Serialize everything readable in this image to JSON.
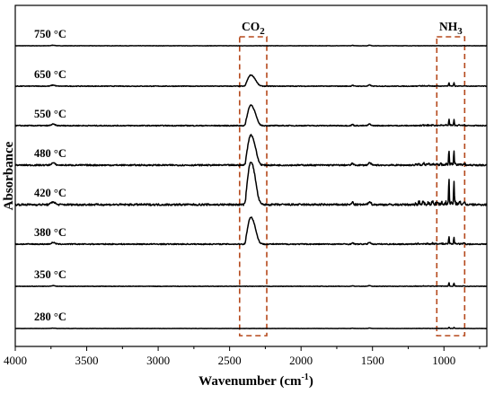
{
  "chart_data": {
    "type": "line",
    "xlabel": "Wavenumber (cm-1)",
    "xlabel_main": "Wavenumber (cm",
    "xlabel_sup": "-1",
    "xlabel_close": ")",
    "ylabel": "Absorbance",
    "xlim": [
      4000,
      700
    ],
    "x_ticks": [
      "4000",
      "3500",
      "3000",
      "2500",
      "2000",
      "1500",
      "1000"
    ],
    "x_tick_values": [
      4000,
      3500,
      3000,
      2500,
      2000,
      1500,
      1000
    ],
    "y_ticks": "none",
    "grid": false,
    "legend": "none",
    "line_color": "#000000",
    "region_color": "#b5491c",
    "series": [
      {
        "name": "750 °C",
        "co2": 0.0,
        "nh3": 0.0,
        "noise": 0.3
      },
      {
        "name": "650 °C",
        "co2": 0.35,
        "nh3": 0.15,
        "noise": 0.6
      },
      {
        "name": "550 °C",
        "co2": 0.65,
        "nh3": 0.25,
        "noise": 0.8
      },
      {
        "name": "480 °C",
        "co2": 0.95,
        "nh3": 0.6,
        "noise": 1.2
      },
      {
        "name": "420 °C",
        "co2": 1.35,
        "nh3": 1.0,
        "noise": 1.6
      },
      {
        "name": "380 °C",
        "co2": 0.85,
        "nh3": 0.3,
        "noise": 0.9
      },
      {
        "name": "350 °C",
        "co2": 0.0,
        "nh3": 0.15,
        "noise": 0.4
      },
      {
        "name": "280 °C",
        "co2": 0.0,
        "nh3": 0.05,
        "noise": 0.2
      }
    ],
    "annotations": [
      {
        "label_main": "CO",
        "label_sub": "2",
        "x_range": [
          2430,
          2240
        ]
      },
      {
        "label_main": "NH",
        "label_sub": "3",
        "x_range": [
          1050,
          855
        ]
      }
    ]
  }
}
